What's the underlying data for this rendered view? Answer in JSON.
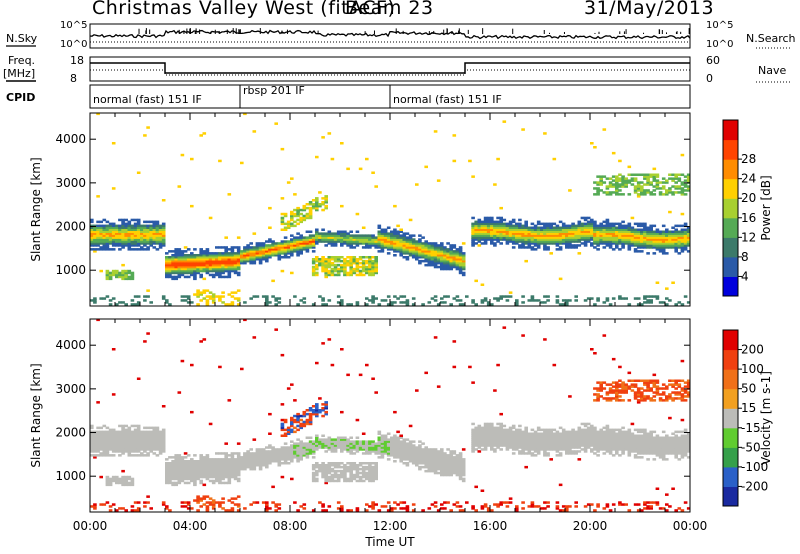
{
  "header": {
    "title": "Christmas Valley West (fitACF)",
    "beam": "Beam 23",
    "date": "31/May/2013"
  },
  "left_labels": {
    "nsky": "N.Sky",
    "nsky_ticks": [
      "10^5",
      "10^0"
    ],
    "freq": "Freq.",
    "freq_unit": "[MHz]",
    "freq_ticks": [
      "18",
      "8"
    ],
    "cpid": "CPID"
  },
  "right_labels": {
    "nsearch": "N.Search",
    "nsearch_ticks": [
      "10^5",
      "10^0"
    ],
    "nave": "Nave",
    "nave_ticks": [
      "60",
      "0"
    ]
  },
  "cpid_segments": [
    {
      "label": "normal (fast) 151 IF"
    },
    {
      "label": "rbsp 201 IF"
    },
    {
      "label": "normal (fast) 151 IF"
    }
  ],
  "chart_data": [
    {
      "type": "heatmap",
      "quantity": "Power",
      "ylabel": "Slant Range [km]",
      "xlabel": "Time UT",
      "ylim": [
        180,
        4600
      ],
      "xlim": [
        0,
        24
      ],
      "x_ticks": [
        "00:00",
        "04:00",
        "08:00",
        "12:00",
        "16:00",
        "20:00",
        "00:00"
      ],
      "y_ticks": [
        1000,
        2000,
        3000,
        4000
      ],
      "colorbar": {
        "label": "Power [dB]",
        "ticks": [
          4,
          8,
          12,
          16,
          20,
          24,
          28
        ],
        "colors": [
          "#0000dd",
          "#2a5aa8",
          "#3c7a6a",
          "#55aa55",
          "#a8d030",
          "#ffd000",
          "#ff8c00",
          "#ff4400",
          "#e00000"
        ]
      }
    },
    {
      "type": "heatmap",
      "quantity": "Velocity",
      "ylabel": "Slant Range [km]",
      "xlabel": "Time UT",
      "ylim": [
        180,
        4600
      ],
      "xlim": [
        0,
        24
      ],
      "x_ticks": [
        "00:00",
        "04:00",
        "08:00",
        "12:00",
        "16:00",
        "20:00",
        "00:00"
      ],
      "y_ticks": [
        1000,
        2000,
        3000,
        4000
      ],
      "colorbar": {
        "label": "Velocity [m s-1]",
        "ticks": [
          200,
          100,
          50,
          15,
          -15,
          -50,
          -100,
          -200
        ],
        "colors": [
          "#1a2aa0",
          "#2a60c8",
          "#35a04a",
          "#60cc30",
          "#bcbcb8",
          "#f2a020",
          "#f07018",
          "#f04010",
          "#e00000"
        ]
      }
    }
  ],
  "ground_scatter_color": "#bcbcb8"
}
